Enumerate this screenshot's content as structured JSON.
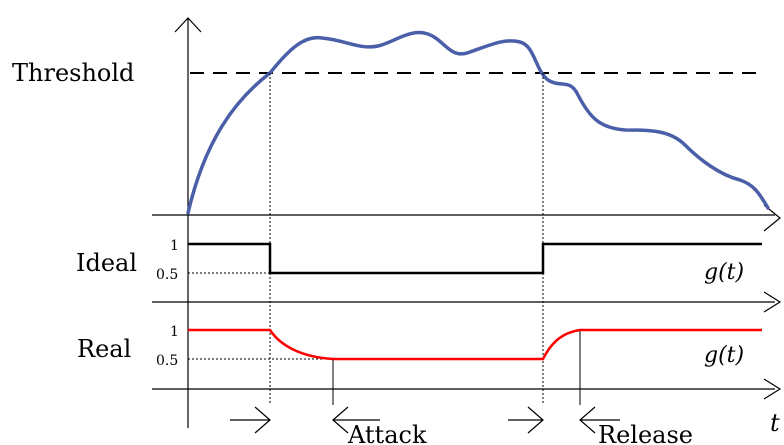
{
  "labels": {
    "threshold": "Threshold",
    "ideal": "Ideal",
    "real": "Real",
    "attack": "Attack",
    "release": "Release",
    "time_axis": "t",
    "gain_ideal": "g(t)",
    "gain_real": "g(t)",
    "ideal_tick_high": "1",
    "ideal_tick_low": "0.5",
    "real_tick_high": "1",
    "real_tick_low": "0.5"
  },
  "colors": {
    "signal": "#4a5fa8",
    "ideal_gain": "#000000",
    "real_gain": "#ff0000",
    "axes": "#000000"
  }
}
